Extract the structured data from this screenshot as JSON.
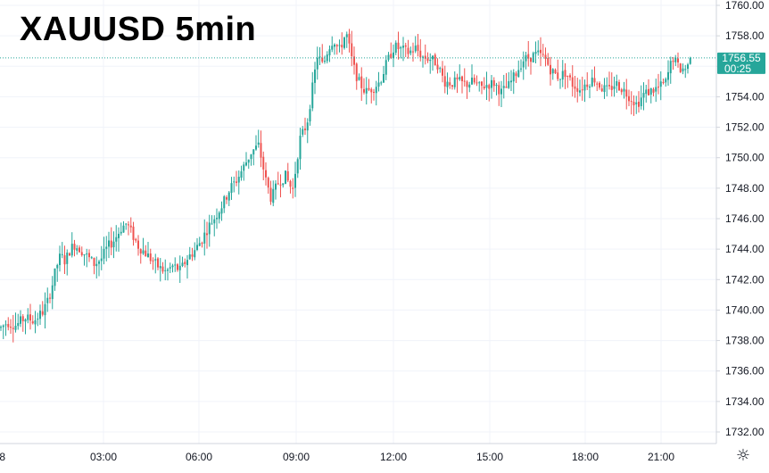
{
  "chart_data": {
    "type": "candlestick",
    "title": "XAUUSD 5min",
    "x_tick_labels": [
      "8",
      "03:00",
      "06:00",
      "09:00",
      "12:00",
      "15:00",
      "18:00",
      "21:00"
    ],
    "y_tick_labels": [
      "1760.00",
      "1758.00",
      "1756.00",
      "1754.00",
      "1752.00",
      "1750.00",
      "1748.00",
      "1746.00",
      "1744.00",
      "1742.00",
      "1740.00",
      "1738.00",
      "1736.00",
      "1734.00",
      "1732.00"
    ],
    "ylim": [
      1731.3,
      1760.4
    ],
    "grid": true,
    "last_price": "1756.55",
    "countdown": "00:25",
    "colors": {
      "up": "#26a69a",
      "down": "#ef5350",
      "last_price": "#26a69a",
      "grid": "#f0f3fa",
      "axis_text": "#131722"
    },
    "path_x": [
      0,
      8,
      18,
      28,
      38,
      48,
      53,
      58,
      63,
      68,
      73,
      78,
      83,
      90,
      98,
      106,
      114,
      120,
      128,
      136,
      142,
      148,
      155,
      162,
      170,
      178,
      186,
      194,
      202,
      210,
      218,
      226,
      234,
      242,
      250,
      258,
      266,
      274,
      282,
      290,
      298,
      304,
      312,
      320,
      328,
      336,
      344,
      350,
      356,
      362,
      368,
      374,
      380,
      388,
      396,
      402,
      410,
      418,
      426,
      434,
      442,
      450,
      458,
      466,
      474,
      482,
      490,
      498,
      506,
      514,
      522,
      530,
      538,
      546,
      554,
      562,
      570,
      578,
      586,
      594,
      602,
      610,
      618,
      626,
      634,
      642,
      650,
      658,
      666,
      674,
      682,
      690,
      698,
      706,
      714,
      722,
      730,
      738,
      746,
      754,
      762,
      770,
      776
    ],
    "path_y": [
      1738.8,
      1739.2,
      1739.0,
      1739.5,
      1739.3,
      1739.9,
      1740.5,
      1741.5,
      1742.8,
      1743.6,
      1743.2,
      1743.9,
      1744.3,
      1744.0,
      1743.5,
      1743.0,
      1743.4,
      1744.1,
      1744.6,
      1745.4,
      1745.7,
      1745.0,
      1744.2,
      1743.8,
      1743.3,
      1742.8,
      1742.5,
      1742.9,
      1742.6,
      1743.4,
      1743.9,
      1744.6,
      1745.5,
      1746.2,
      1747.0,
      1748.0,
      1748.6,
      1749.5,
      1750.4,
      1750.8,
      1748.5,
      1747.3,
      1748.4,
      1748.8,
      1747.8,
      1751.2,
      1752.2,
      1754.5,
      1756.8,
      1756.0,
      1757.2,
      1757.8,
      1757.0,
      1758.2,
      1756.0,
      1755.0,
      1754.3,
      1754.6,
      1755.0,
      1756.3,
      1757.3,
      1757.1,
      1756.9,
      1757.2,
      1756.6,
      1756.5,
      1756.2,
      1755.0,
      1754.9,
      1755.0,
      1754.8,
      1755.0,
      1754.6,
      1754.8,
      1754.9,
      1754.3,
      1754.7,
      1755.5,
      1756.4,
      1756.6,
      1756.8,
      1756.6,
      1755.7,
      1755.3,
      1755.6,
      1754.8,
      1754.5,
      1754.9,
      1755.2,
      1754.6,
      1754.4,
      1754.9,
      1754.5,
      1754.0,
      1753.5,
      1754.2,
      1754.4,
      1754.6,
      1754.9,
      1756.6,
      1755.8,
      1755.9,
      1756.55
    ]
  }
}
